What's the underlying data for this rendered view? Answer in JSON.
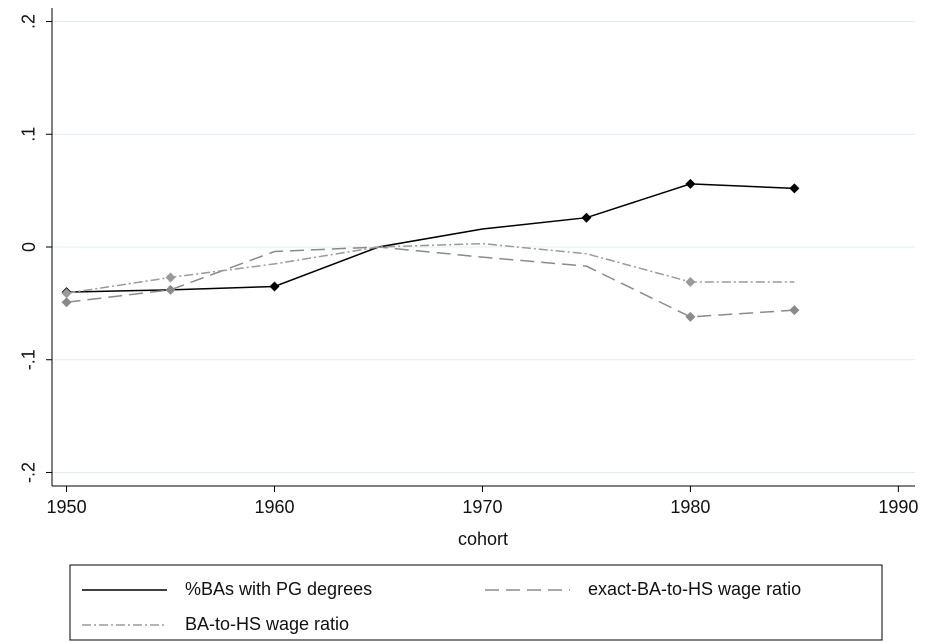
{
  "chart_data": {
    "type": "line",
    "x_label": "cohort",
    "x": [
      1950,
      1955,
      1960,
      1965,
      1970,
      1975,
      1980,
      1985
    ],
    "series": [
      {
        "name": "%BAs with PG degrees",
        "color": "#000000",
        "dash": "solid",
        "values": [
          -0.04,
          -0.038,
          -0.035,
          0,
          0.016,
          0.026,
          0.056,
          0.052
        ],
        "markers": [
          true,
          false,
          true,
          false,
          false,
          true,
          true,
          true
        ]
      },
      {
        "name": "exact-BA-to-HS wage ratio",
        "color": "#8a8a8a",
        "dash": "long-dash",
        "values": [
          -0.049,
          -0.038,
          -0.004,
          0,
          -0.009,
          -0.017,
          -0.062,
          -0.056
        ],
        "markers": [
          true,
          true,
          false,
          false,
          false,
          false,
          true,
          true
        ]
      },
      {
        "name": "BA-to-HS wage ratio",
        "color": "#9a9a9a",
        "dash": "dash-dot",
        "values": [
          -0.041,
          -0.027,
          -0.015,
          0,
          0.003,
          -0.006,
          -0.031,
          -0.031
        ],
        "markers": [
          true,
          true,
          false,
          false,
          false,
          false,
          true,
          false
        ]
      }
    ],
    "xlim": [
      1949.3,
      1990.8
    ],
    "xticks": [
      1950,
      1960,
      1970,
      1980,
      1990
    ],
    "ylim": [
      -0.212,
      0.212
    ],
    "yticks": [
      {
        "value": -0.2,
        "label": "-.2"
      },
      {
        "value": -0.1,
        "label": "-.1"
      },
      0,
      {
        "value": 0.1,
        "label": ".1"
      },
      {
        "value": 0.2,
        "label": ".2"
      }
    ],
    "grid": true
  }
}
